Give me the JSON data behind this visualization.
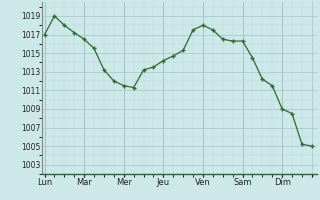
{
  "x": [
    0,
    1,
    2,
    3,
    4,
    5,
    6,
    7,
    8,
    9,
    10,
    11,
    12,
    13,
    14,
    15,
    16,
    17,
    18,
    19,
    20,
    21,
    22,
    23,
    24,
    25,
    26,
    27
  ],
  "y": [
    1017.0,
    1019.0,
    1018.0,
    1017.2,
    1016.5,
    1015.5,
    1013.2,
    1012.0,
    1011.5,
    1011.3,
    1013.2,
    1013.5,
    1014.2,
    1014.7,
    1015.3,
    1017.5,
    1018.0,
    1017.5,
    1016.5,
    1016.3,
    1016.3,
    1014.5,
    1012.2,
    1011.5,
    1009.0,
    1008.5,
    1005.2,
    1005.0
  ],
  "yticks": [
    1003,
    1005,
    1007,
    1009,
    1011,
    1013,
    1015,
    1017,
    1019
  ],
  "ylim": [
    1002.0,
    1020.5
  ],
  "xlim": [
    -0.3,
    27.5
  ],
  "day_positions": [
    0,
    4,
    8,
    12,
    16,
    20,
    24,
    27
  ],
  "day_labels": [
    "Lun",
    "Mar",
    "Mer",
    "Jeu",
    "Ven",
    "Sam",
    "Dim",
    ""
  ],
  "vline_positions": [
    0,
    4,
    8,
    12,
    16,
    20,
    24
  ],
  "line_color": "#2d6a2d",
  "bg_color": "#cce8e8",
  "grid_major_color": "#aacccc",
  "grid_minor_color": "#bdd8d8"
}
